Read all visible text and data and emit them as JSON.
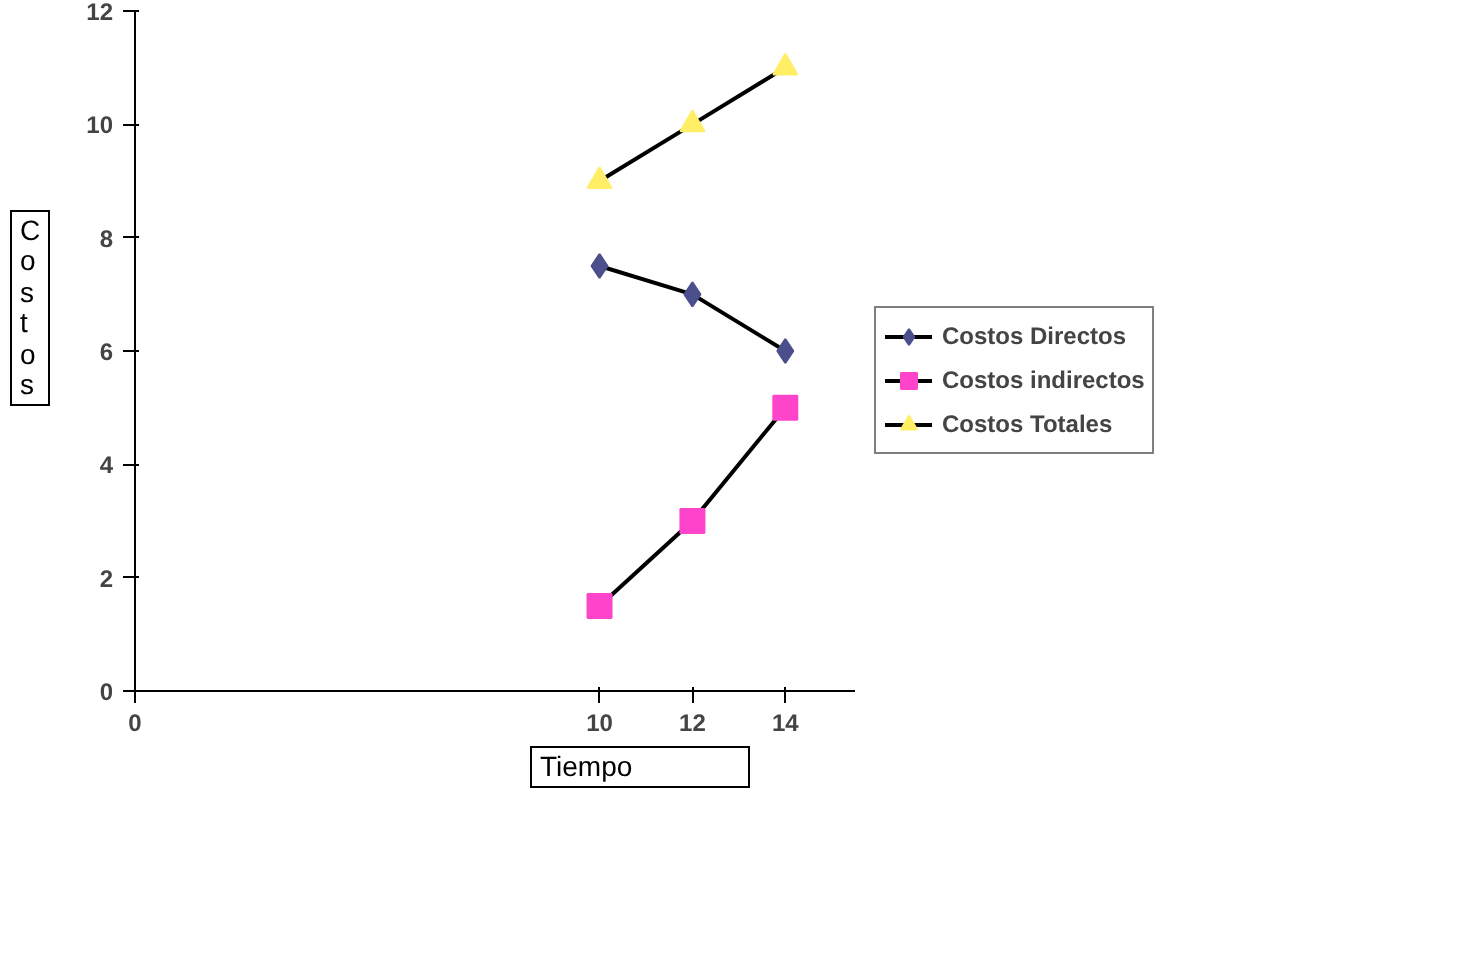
{
  "chart_data": {
    "type": "line",
    "xlabel": "Tiempo",
    "ylabel": "Costos",
    "x": [
      10,
      12,
      14
    ],
    "series": [
      {
        "name": "Costos Directos",
        "color": "#4b4f8c",
        "marker": "diamond",
        "values": [
          7.5,
          7,
          6
        ]
      },
      {
        "name": "Costos indirectos",
        "color": "#ff44cc",
        "marker": "square",
        "values": [
          1.5,
          3,
          5
        ]
      },
      {
        "name": "Costos Totales",
        "color": "#ffee66",
        "marker": "triangle",
        "values": [
          9,
          10,
          11
        ]
      }
    ],
    "xlim": [
      0,
      15.5
    ],
    "xticks": [
      0,
      10,
      12,
      14
    ],
    "ylim": [
      0,
      12
    ],
    "yticks": [
      0,
      2,
      4,
      6,
      8,
      10,
      12
    ],
    "grid": false,
    "legend": "right",
    "line_style": "solid"
  }
}
